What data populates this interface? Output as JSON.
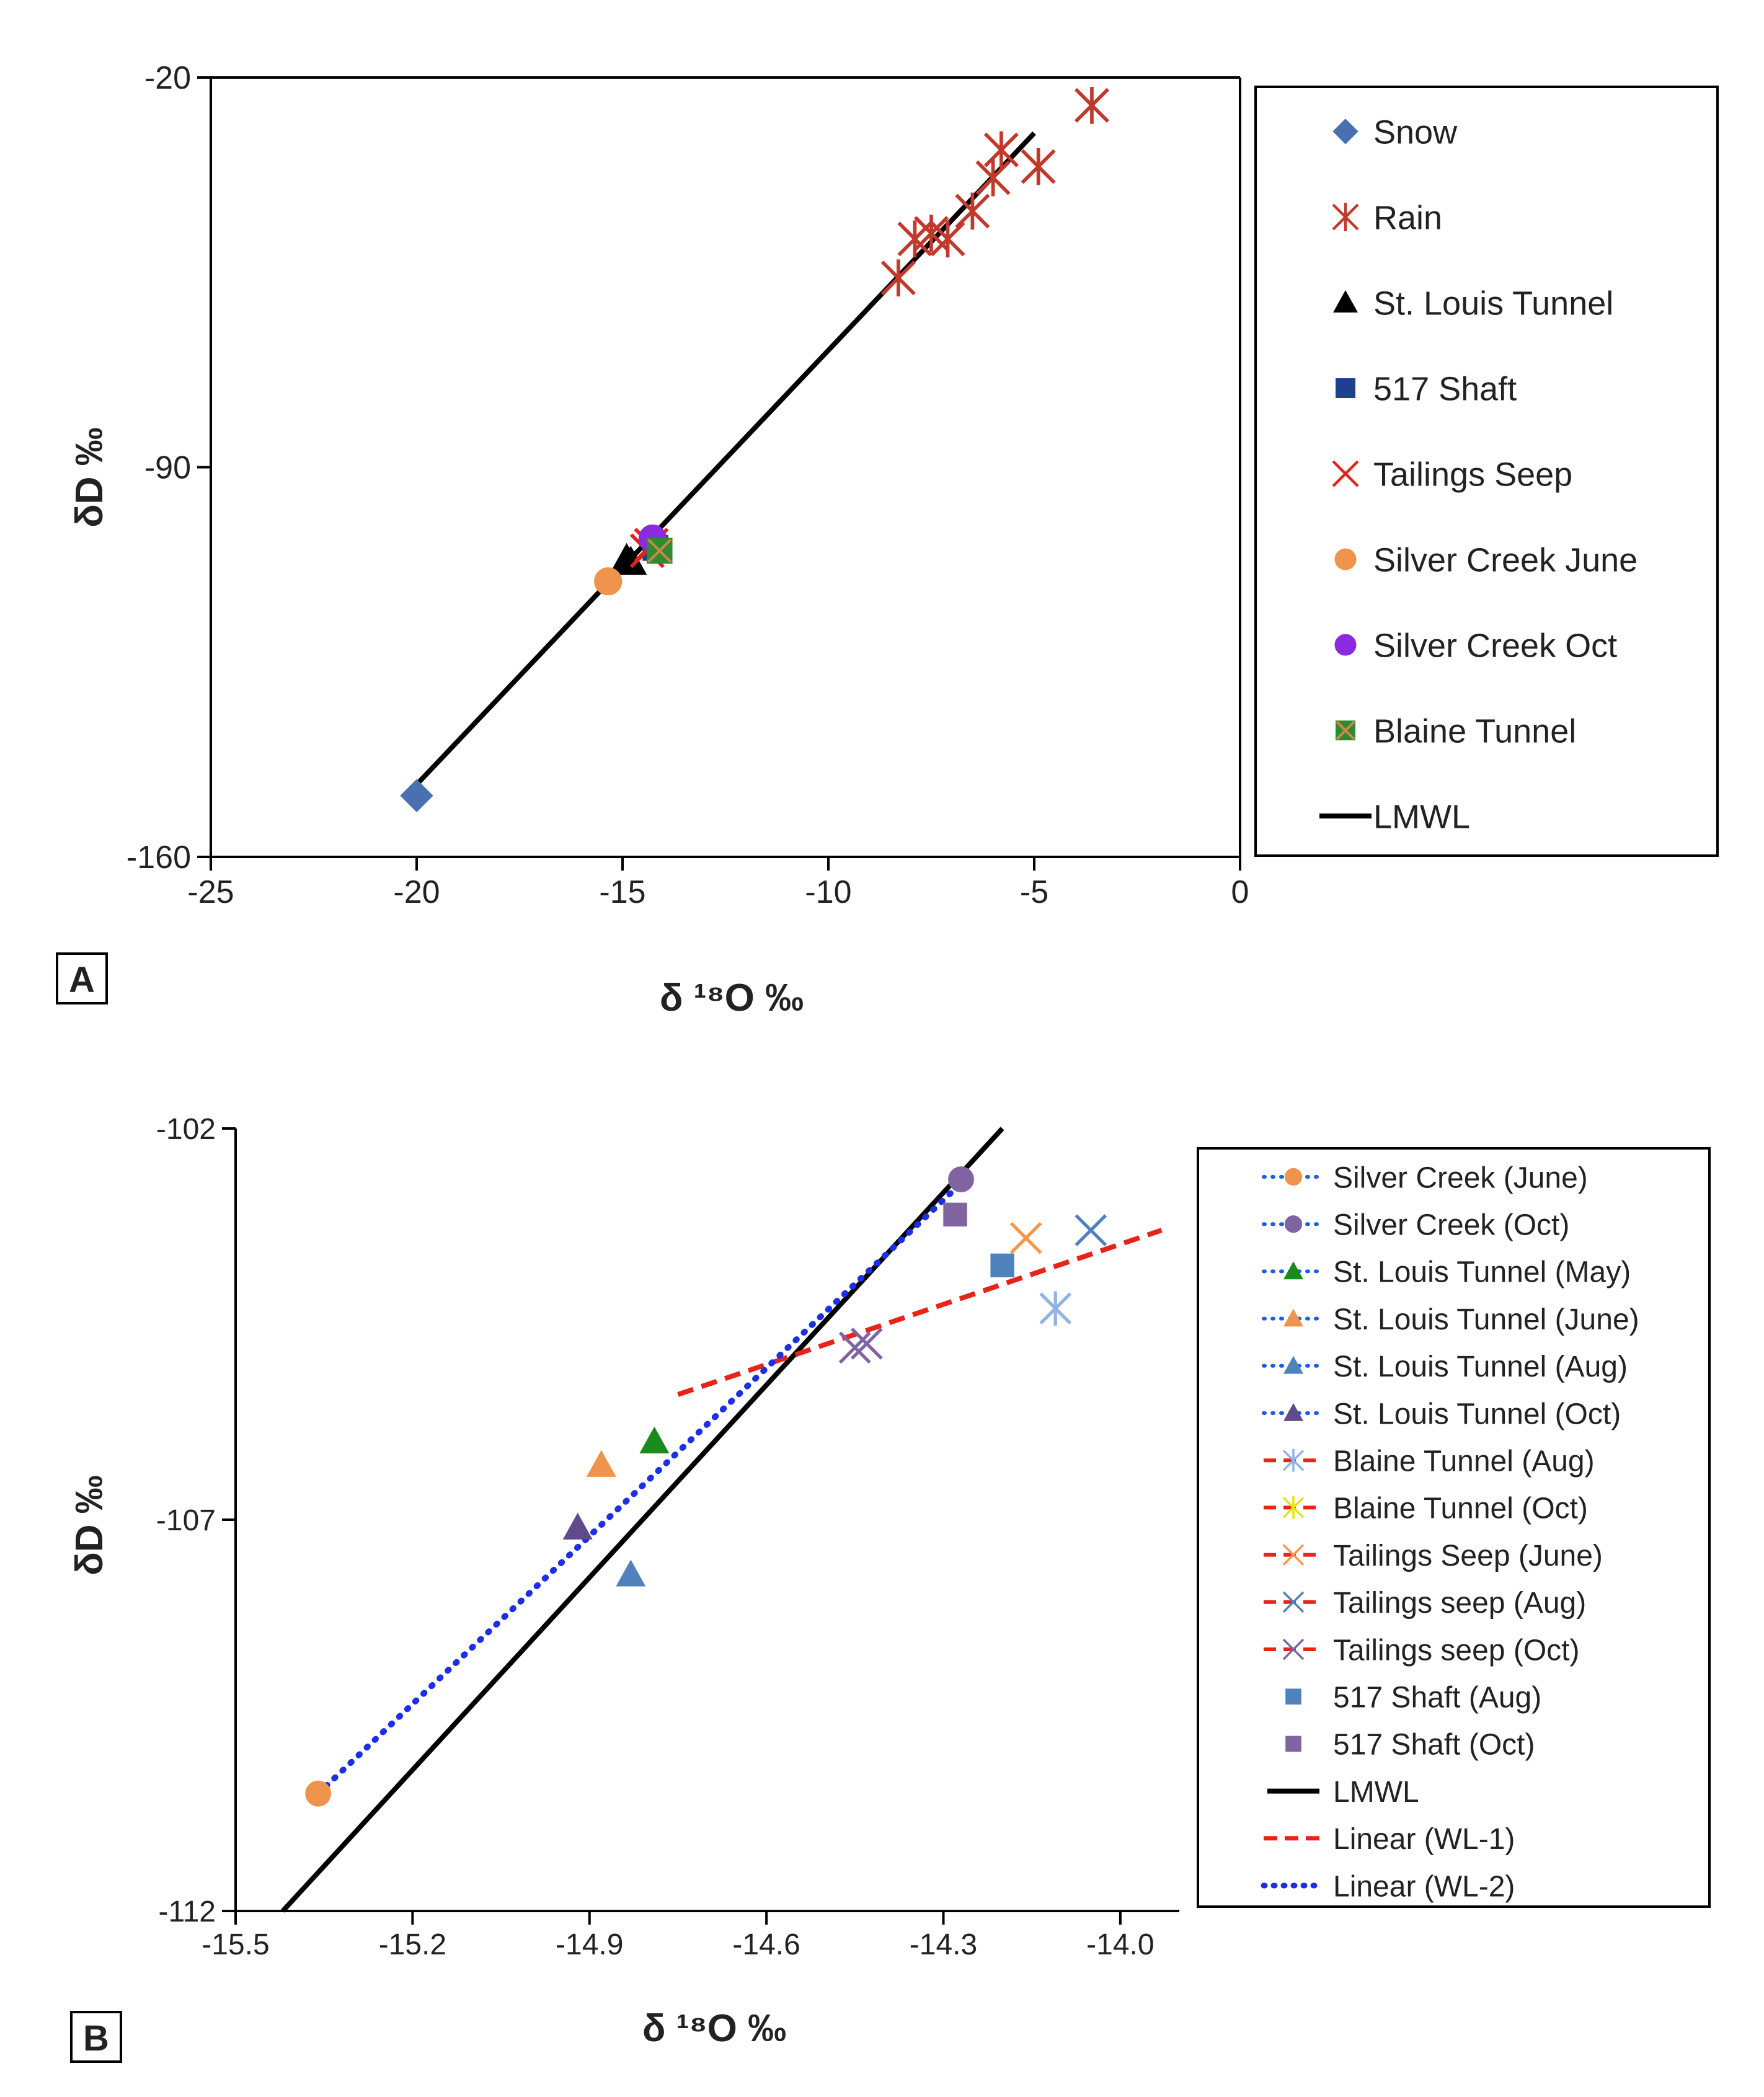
{
  "chart_data": [
    {
      "type": "scatter",
      "panel_label": "A",
      "xlabel": "δ ¹⁸O ‰",
      "ylabel": "δD ‰",
      "xlim": [
        -25,
        0
      ],
      "ylim": [
        -160,
        -20
      ],
      "xticks": [
        -25,
        -20,
        -15,
        -10,
        -5,
        0
      ],
      "yticks": [
        -20,
        -90,
        -160
      ],
      "grid": false,
      "legend_position": "right",
      "series": [
        {
          "name": "Snow",
          "color": "#4a70b0",
          "marker": "diamond",
          "points": [
            [
              -20,
              -149
            ]
          ]
        },
        {
          "name": "Rain",
          "color": "#c0392b",
          "marker": "asterisk",
          "points": [
            [
              -3.6,
              -25
            ],
            [
              -4.9,
              -36
            ],
            [
              -5.8,
              -33
            ],
            [
              -6.0,
              -38
            ],
            [
              -6.5,
              -44
            ],
            [
              -7.1,
              -49
            ],
            [
              -7.5,
              -48
            ],
            [
              -7.9,
              -49
            ],
            [
              -8.3,
              -56
            ]
          ]
        },
        {
          "name": "St. Louis Tunnel",
          "color": "#000000",
          "marker": "triangle",
          "points": [
            [
              -14.8,
              -107
            ],
            [
              -14.9,
              -106.5
            ]
          ]
        },
        {
          "name": "517 Shaft",
          "color": "#1f3f8f",
          "marker": "square",
          "points": [
            [
              -14.2,
              -104.5
            ]
          ]
        },
        {
          "name": "Tailings Seep",
          "color": "#e0231a",
          "marker": "x",
          "points": [
            [
              -14.3,
              -104
            ],
            [
              -14.4,
              -105
            ]
          ]
        },
        {
          "name": "Silver Creek June",
          "color": "#f0944d",
          "marker": "circle",
          "points": [
            [
              -15.35,
              -110.5
            ]
          ]
        },
        {
          "name": "Silver Creek Oct",
          "color": "#8a2be2",
          "marker": "circle",
          "points": [
            [
              -14.27,
              -102.8
            ]
          ]
        },
        {
          "name": "Blaine Tunnel",
          "color": "#2e8b2e",
          "marker": "boxx",
          "points": [
            [
              -14.1,
              -105
            ]
          ]
        },
        {
          "name": "LMWL",
          "color": "#000000",
          "marker": "line",
          "points": [
            [
              -20,
              -147
            ],
            [
              -5,
              -30
            ]
          ]
        }
      ]
    },
    {
      "type": "scatter",
      "panel_label": "B",
      "xlabel": "δ ¹⁸O ‰",
      "ylabel": "δD ‰",
      "xlim": [
        -15.5,
        -13.9
      ],
      "ylim": [
        -112,
        -102
      ],
      "xticks": [
        -15.5,
        -15.2,
        -14.9,
        -14.6,
        -14.3,
        -14.0
      ],
      "xtick_labels": [
        "-15.5",
        "-15.2",
        "-14.9",
        "-14.6",
        "-14.3",
        "-14.0"
      ],
      "yticks": [
        -102,
        -107,
        -112
      ],
      "grid": false,
      "legend_position": "right",
      "series": [
        {
          "name": "Silver Creek (June)",
          "color": "#f0944d",
          "marker": "circle",
          "line": "dot",
          "points": [
            [
              -15.36,
              -110.5
            ]
          ]
        },
        {
          "name": "Silver Creek (Oct)",
          "color": "#8064a2",
          "marker": "circle",
          "line": "dot",
          "points": [
            [
              -14.27,
              -102.65
            ]
          ]
        },
        {
          "name": "St. Louis Tunnel (May)",
          "color": "#1a8a1a",
          "marker": "triangle",
          "line": "dot",
          "points": [
            [
              -14.79,
              -106.0
            ]
          ]
        },
        {
          "name": "St. Louis Tunnel (June)",
          "color": "#f0944d",
          "marker": "triangle",
          "line": "dot",
          "points": [
            [
              -14.88,
              -106.3
            ]
          ]
        },
        {
          "name": "St. Louis Tunnel (Aug)",
          "color": "#4f81bd",
          "marker": "triangle",
          "line": "dot",
          "points": [
            [
              -14.83,
              -107.7
            ]
          ]
        },
        {
          "name": "St. Louis Tunnel (Oct)",
          "color": "#5f4a8b",
          "marker": "triangle",
          "line": "dot",
          "points": [
            [
              -14.92,
              -107.1
            ]
          ]
        },
        {
          "name": "Blaine Tunnel (Aug)",
          "color": "#8fb4e3",
          "marker": "asterisk",
          "line": "dash",
          "points": [
            [
              -14.11,
              -104.3
            ]
          ]
        },
        {
          "name": "Blaine Tunnel (Oct)",
          "color": "#e6e600",
          "marker": "asterisk",
          "line": "dash",
          "points": []
        },
        {
          "name": "Tailings Seep (June)",
          "color": "#f79646",
          "marker": "x",
          "line": "dash",
          "points": [
            [
              -14.16,
              -103.4
            ]
          ]
        },
        {
          "name": "Tailings seep (Aug)",
          "color": "#4f81bd",
          "marker": "x",
          "line": "dash",
          "points": [
            [
              -14.05,
              -103.3
            ]
          ]
        },
        {
          "name": "Tailings seep (Oct)",
          "color": "#8064a2",
          "marker": "x",
          "line": "dash",
          "points": [
            [
              -14.43,
              -104.75
            ],
            [
              -14.45,
              -104.8
            ]
          ]
        },
        {
          "name": "517 Shaft (Aug)",
          "color": "#4f81bd",
          "marker": "square",
          "points": [
            [
              -14.2,
              -103.75
            ]
          ]
        },
        {
          "name": "517 Shaft (Oct)",
          "color": "#8064a2",
          "marker": "square",
          "points": [
            [
              -14.28,
              -103.1
            ]
          ]
        },
        {
          "name": "LMWL",
          "color": "#000000",
          "marker": "line",
          "points": [
            [
              -15.42,
              -112.0
            ],
            [
              -14.2,
              -102.0
            ]
          ]
        },
        {
          "name": "Linear (WL-1)",
          "color": "#e8231a",
          "marker": "trend-dash",
          "points": [
            [
              -14.75,
              -105.4
            ],
            [
              -13.93,
              -103.3
            ]
          ]
        },
        {
          "name": "Linear (WL-2)",
          "color": "#1a2fe6",
          "marker": "trend-dot",
          "points": [
            [
              -15.36,
              -110.5
            ],
            [
              -14.27,
              -102.7
            ]
          ]
        }
      ]
    }
  ]
}
